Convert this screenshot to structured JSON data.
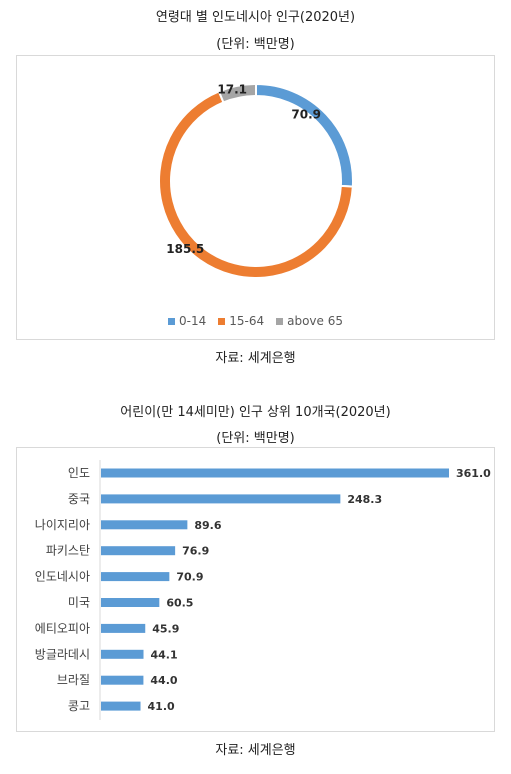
{
  "chart1": {
    "title": "연령대 별 인도네시아 인구(2020년)",
    "subtitle": "(단위: 백만명)",
    "source": "자료: 세계은행",
    "chart_data": {
      "type": "pie",
      "categories": [
        "0-14",
        "15-64",
        "above 65"
      ],
      "values": [
        70.9,
        185.5,
        17.1
      ],
      "colors": [
        "#5b9bd5",
        "#ed7d31",
        "#a5a5a5"
      ],
      "legend": "bottom"
    }
  },
  "chart2": {
    "title": "어린이(만 14세미만) 인구 상위 10개국(2020년)",
    "subtitle": "(단위: 백만명)",
    "source": "자료: 세계은행",
    "chart_data": {
      "type": "bar",
      "orientation": "horizontal",
      "categories": [
        "인도",
        "중국",
        "나이지리아",
        "파키스탄",
        "인도네시아",
        "미국",
        "에티오피아",
        "방글라데시",
        "브라질",
        "콩고"
      ],
      "values": [
        361.0,
        248.3,
        89.6,
        76.9,
        70.9,
        60.5,
        45.9,
        44.1,
        44.0,
        41.0
      ],
      "color": "#5b9bd5"
    }
  }
}
